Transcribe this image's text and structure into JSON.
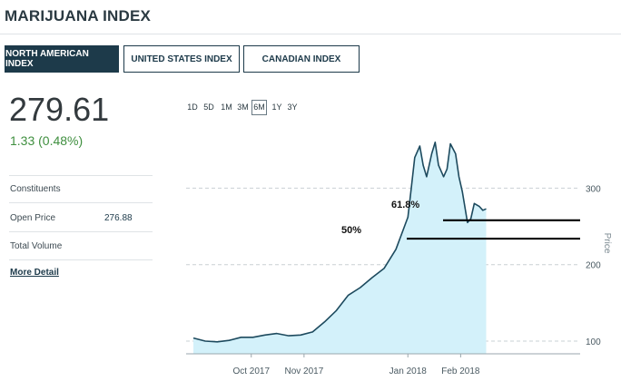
{
  "page": {
    "title": "MARIJUANA INDEX"
  },
  "tabs": [
    {
      "label": "NORTH AMERICAN INDEX",
      "active": true
    },
    {
      "label": "UNITED STATES INDEX",
      "active": false
    },
    {
      "label": "CANADIAN INDEX",
      "active": false
    }
  ],
  "quote": {
    "value": "279.61",
    "change": "1.33 (0.48%)",
    "change_color": "#3f8f3f"
  },
  "stats": {
    "constituents_label": "Constituents",
    "open_price_label": "Open Price",
    "open_price_value": "276.88",
    "total_volume_label": "Total Volume"
  },
  "more_detail_label": "More Detail",
  "ranges": [
    "1D",
    "5D",
    "1M",
    "3M",
    "6M",
    "1Y",
    "3Y"
  ],
  "active_range": "6M",
  "chart_data": {
    "type": "area",
    "ylabel": "Price",
    "y_ticks": [
      100,
      200,
      300
    ],
    "x_tick_labels": [
      "Oct 2017",
      "Nov 2017",
      "Jan 2018",
      "Feb 2018"
    ],
    "fill_color": "#d3f1fa",
    "line_color": "#1d4a5e",
    "series": [
      {
        "x": [
          "2017-08-28",
          "2017-09-04",
          "2017-09-11",
          "2017-09-18",
          "2017-09-25",
          "2017-10-02",
          "2017-10-09",
          "2017-10-16",
          "2017-10-23",
          "2017-10-30",
          "2017-11-06",
          "2017-11-13",
          "2017-11-20",
          "2017-11-27",
          "2017-12-04",
          "2017-12-11",
          "2017-12-18",
          "2017-12-25",
          "2018-01-01",
          "2018-01-03",
          "2018-01-05",
          "2018-01-08",
          "2018-01-10",
          "2018-01-12",
          "2018-01-15",
          "2018-01-17",
          "2018-01-19",
          "2018-01-22",
          "2018-01-24",
          "2018-01-26",
          "2018-01-29",
          "2018-01-31",
          "2018-02-02",
          "2018-02-05",
          "2018-02-07",
          "2018-02-09",
          "2018-02-12",
          "2018-02-14",
          "2018-02-16"
        ],
        "y": [
          104,
          100,
          99,
          101,
          105,
          105,
          108,
          110,
          107,
          108,
          112,
          125,
          140,
          160,
          170,
          183,
          195,
          220,
          262,
          300,
          340,
          355,
          330,
          315,
          345,
          360,
          330,
          315,
          325,
          358,
          345,
          315,
          295,
          255,
          260,
          280,
          276,
          271,
          273
        ]
      }
    ],
    "annotations": [
      {
        "label": "61.8%",
        "y": 258
      },
      {
        "label": "50%",
        "y": 234
      }
    ]
  }
}
